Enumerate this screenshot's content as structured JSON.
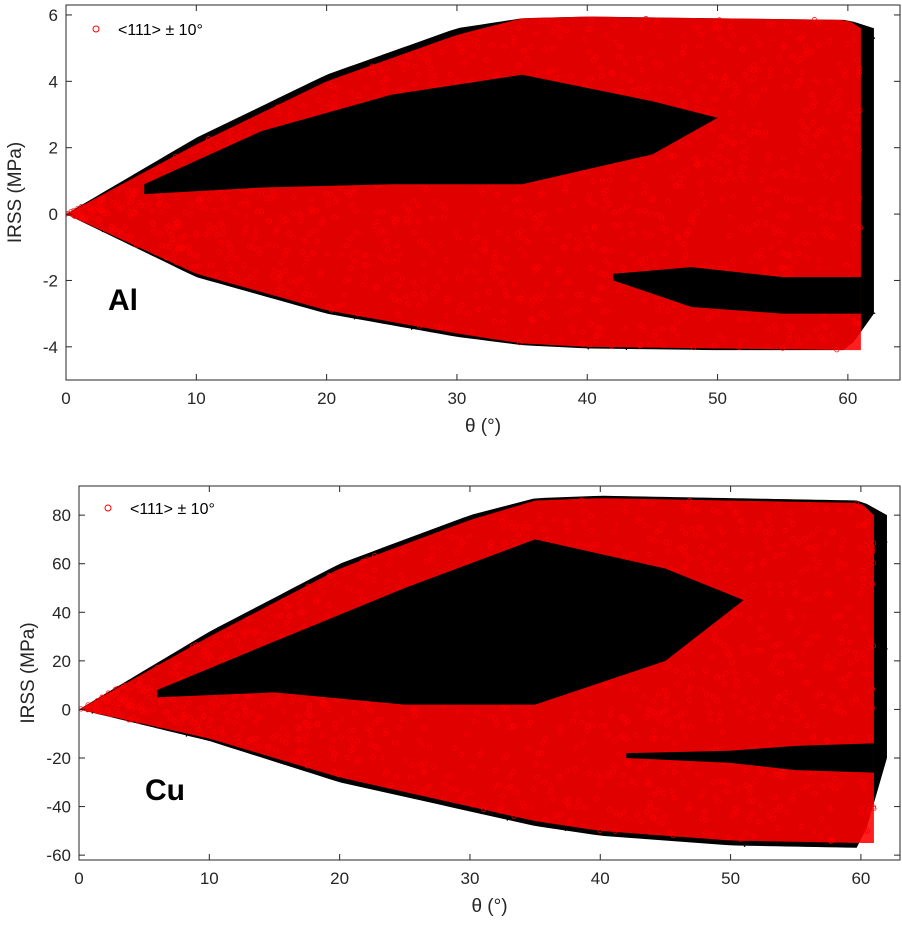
{
  "chart_data": [
    {
      "type": "scatter",
      "panel_label": "Al",
      "xlabel": "θ (°)",
      "ylabel": "IRSS (MPa)",
      "xlim": [
        0,
        64
      ],
      "ylim": [
        -5,
        6.3
      ],
      "xticks": [
        "0",
        "10",
        "20",
        "30",
        "40",
        "50",
        "60"
      ],
      "yticks": [
        "-4",
        "-2",
        "0",
        "2",
        "4",
        "6"
      ],
      "legend": {
        "label": "<111> ± 10°",
        "placement": "top-left",
        "marker": "open-circle",
        "color": "#ff0000"
      },
      "series": [
        {
          "name": "<111> ± 10°",
          "color": "#ff0000",
          "envelope": {
            "x": [
              0,
              10,
              20,
              30,
              35,
              40,
              50,
              60,
              61
            ],
            "upper": [
              0,
              2.1,
              4.0,
              5.4,
              5.9,
              5.95,
              5.9,
              5.85,
              5.6
            ],
            "lower": [
              0,
              -1.8,
              -2.9,
              -3.6,
              -3.9,
              -4.0,
              -4.05,
              -4.1,
              -4.1
            ]
          }
        },
        {
          "name": "",
          "color": "#000000",
          "envelope": {
            "x": [
              0,
              10,
              20,
              30,
              35,
              40,
              50,
              60,
              62
            ],
            "upper": [
              0,
              2.3,
              4.2,
              5.6,
              5.9,
              5.95,
              5.9,
              5.85,
              5.6
            ],
            "lower": [
              0,
              -1.9,
              -3.0,
              -3.7,
              -3.95,
              -4.05,
              -4.1,
              -4.1,
              -3.0
            ]
          }
        }
      ]
    },
    {
      "type": "scatter",
      "panel_label": "Cu",
      "xlabel": "θ (°)",
      "ylabel": "IRSS (MPa)",
      "xlim": [
        0,
        63
      ],
      "ylim": [
        -62,
        92
      ],
      "xticks": [
        "0",
        "10",
        "20",
        "30",
        "40",
        "50",
        "60"
      ],
      "yticks": [
        "-60",
        "-40",
        "-20",
        "0",
        "20",
        "40",
        "60",
        "80"
      ],
      "legend": {
        "label": "<111> ± 10°",
        "placement": "top-left",
        "marker": "open-circle",
        "color": "#ff0000"
      },
      "series": [
        {
          "name": "<111> ± 10°",
          "color": "#ff0000",
          "envelope": {
            "x": [
              0,
              10,
              20,
              30,
              35,
              40,
              50,
              60,
              61
            ],
            "upper": [
              0,
              30,
              58,
              78,
              86,
              87,
              86,
              85,
              80
            ],
            "lower": [
              0,
              -12,
              -28,
              -40,
              -46,
              -50,
              -54,
              -55,
              -55
            ]
          }
        },
        {
          "name": "",
          "color": "#000000",
          "envelope": {
            "x": [
              0,
              10,
              20,
              30,
              35,
              40,
              50,
              60,
              62
            ],
            "upper": [
              0,
              32,
              60,
              80,
              87,
              88,
              87,
              86,
              80
            ],
            "lower": [
              0,
              -13,
              -30,
              -42,
              -48,
              -52,
              -56,
              -57,
              -20
            ]
          }
        }
      ]
    }
  ]
}
